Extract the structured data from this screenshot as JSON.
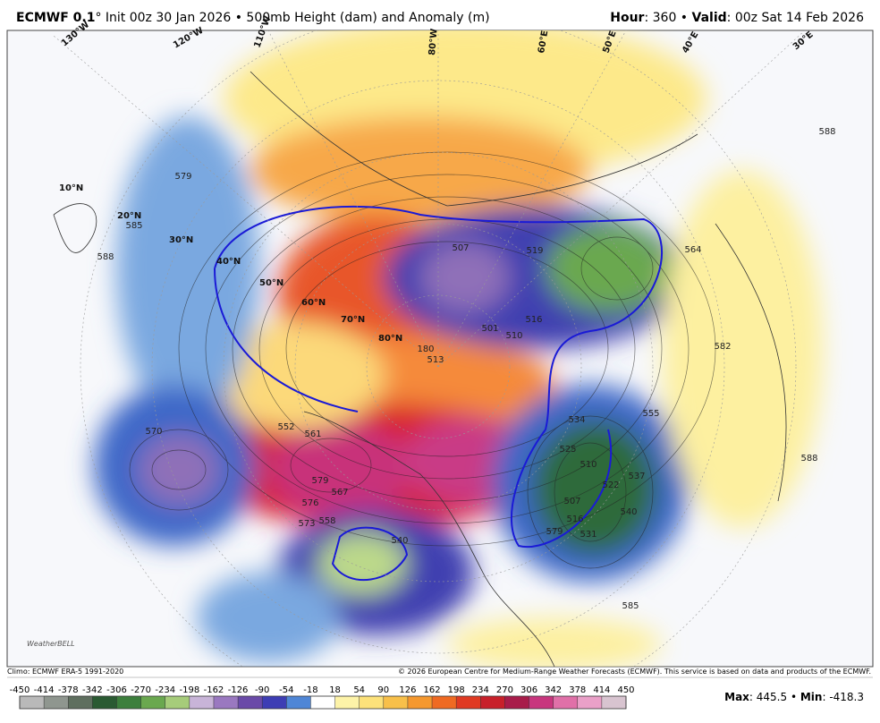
{
  "header": {
    "model": "ECMWF 0.1",
    "resolution": "°",
    "run_info": "Init 00z 30 Jan 2026 • 500mb Height (dam) and Anomaly (m)",
    "hour_label": "Hour",
    "hour_value": ": 360 •",
    "valid_label": "Valid",
    "valid_value": ": 00z Sat 14 Feb 2026"
  },
  "map": {
    "latitude_labels": [
      "10°N",
      "20°N",
      "30°N",
      "40°N",
      "50°N",
      "60°N",
      "70°N",
      "80°N"
    ],
    "longitude_labels": [
      "130°W",
      "120°W",
      "110°W",
      "80°W",
      "60°E",
      "50°E",
      "40°E",
      "30°E"
    ],
    "height_labels": [
      579,
      585,
      588,
      570,
      552,
      561,
      579,
      567,
      576,
      573,
      558,
      540,
      534,
      525,
      510,
      507,
      516,
      531,
      522,
      537,
      540,
      555,
      588,
      585,
      588,
      564,
      582,
      507,
      501,
      510,
      516,
      513,
      519,
      180,
      579
    ],
    "logo": "WeatherBELL"
  },
  "footer": {
    "climo": "Climo: ECMWF ERA-5 1991-2020",
    "copyright": "© 2026 European Centre for Medium-Range Weather Forecasts (ECMWF). This service is based on data and products of the ECMWF.",
    "max_label": "Max",
    "max_value": "445.5",
    "min_label": "Min",
    "min_value": "-418.3"
  },
  "colorbar": {
    "ticks": [
      -450,
      -414,
      -378,
      -342,
      -306,
      -270,
      -234,
      -198,
      -162,
      -126,
      -90,
      -54,
      -18,
      18,
      54,
      90,
      126,
      162,
      198,
      234,
      270,
      306,
      342,
      378,
      414,
      450
    ],
    "colors": [
      "#b9b9b9",
      "#8f968f",
      "#5f6f5f",
      "#2a5a32",
      "#3c7f3c",
      "#6aa84f",
      "#a6cc7a",
      "#c8b4d8",
      "#9a78c0",
      "#6a4aa8",
      "#3d3db4",
      "#4f86d6",
      "#ffffff",
      "#fdf3a8",
      "#fde27a",
      "#f8c04a",
      "#f5982e",
      "#ef6a22",
      "#e03a22",
      "#c8202a",
      "#a81c4a",
      "#c8367e",
      "#e070a8",
      "#eaa0c8",
      "#d8c4d0"
    ]
  }
}
